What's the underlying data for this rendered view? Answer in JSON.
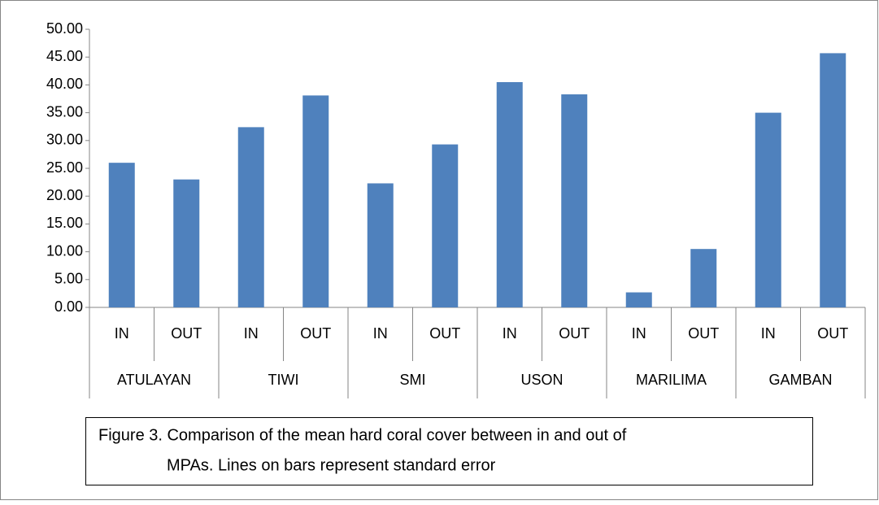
{
  "chart_data": {
    "type": "bar",
    "categories": [
      "IN",
      "OUT",
      "IN",
      "OUT",
      "IN",
      "OUT",
      "IN",
      "OUT",
      "IN",
      "OUT",
      "IN",
      "OUT"
    ],
    "groups": [
      "ATULAYAN",
      "TIWI",
      "SMI",
      "USON",
      "MARILIMA",
      "GAMBAN"
    ],
    "values": [
      26.0,
      23.0,
      32.4,
      38.1,
      22.3,
      29.3,
      40.5,
      38.3,
      2.7,
      10.5,
      35.0,
      45.7
    ],
    "color": "#4f81bd",
    "ylim": [
      0,
      50
    ],
    "yticks": [
      {
        "value": 0,
        "label": "0.00"
      },
      {
        "value": 5,
        "label": "5.00"
      },
      {
        "value": 10,
        "label": "10.00"
      },
      {
        "value": 15,
        "label": "15.00"
      },
      {
        "value": 20,
        "label": "20.00"
      },
      {
        "value": 25,
        "label": "25.00"
      },
      {
        "value": 30,
        "label": "30.00"
      },
      {
        "value": 35,
        "label": "35.00"
      },
      {
        "value": 40,
        "label": "40.00"
      },
      {
        "value": 45,
        "label": "45.00"
      },
      {
        "value": 50,
        "label": "50.00"
      }
    ],
    "grid": false,
    "caption": [
      "Figure 3. Comparison of the mean hard coral cover between in and out of",
      "MPAs. Lines on bars represent standard error"
    ]
  }
}
